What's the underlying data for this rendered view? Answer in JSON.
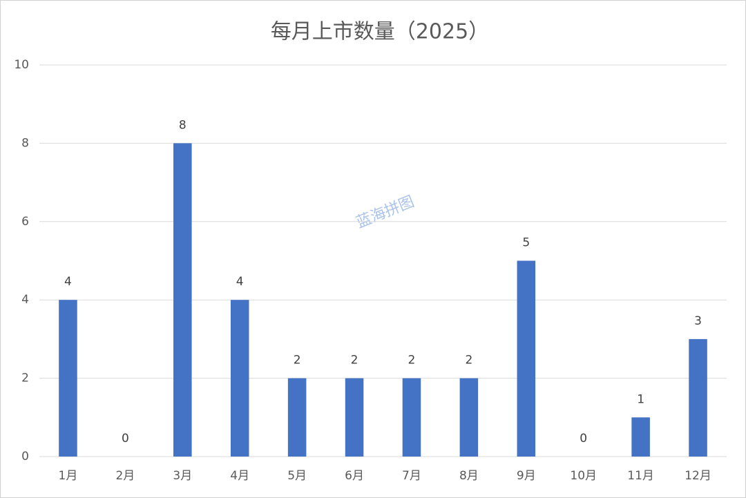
{
  "chart_data": {
    "type": "bar",
    "title": "每月上市数量（2025）",
    "categories": [
      "1月",
      "2月",
      "3月",
      "4月",
      "5月",
      "6月",
      "7月",
      "8月",
      "9月",
      "10月",
      "11月",
      "12月"
    ],
    "values": [
      4,
      0,
      8,
      4,
      2,
      2,
      2,
      2,
      5,
      0,
      1,
      3
    ],
    "color": "#4472c4",
    "ylim": [
      0,
      10
    ],
    "yticks": [
      0,
      2,
      4,
      6,
      8,
      10
    ],
    "grid": true,
    "watermark": "蓝海拼图"
  }
}
